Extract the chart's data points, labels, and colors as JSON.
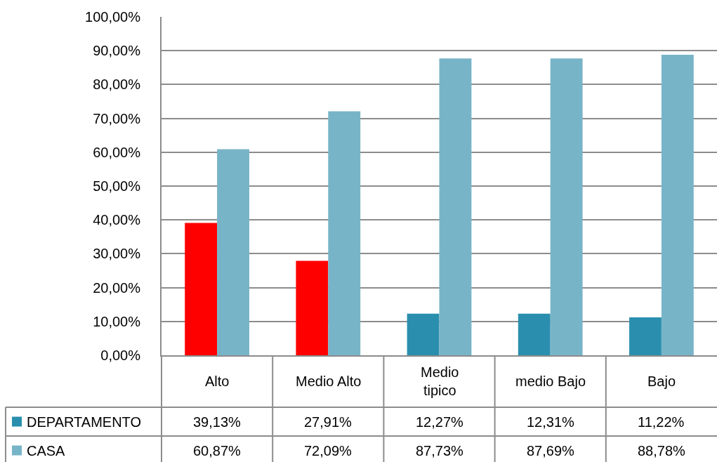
{
  "chart_data": {
    "type": "bar",
    "categories": [
      "Alto",
      "Medio Alto",
      "Medio tipico",
      "medio Bajo",
      "Bajo"
    ],
    "series": [
      {
        "name": "DEPARTAMENTO",
        "color": "#2a8fae",
        "colors": [
          "#ff0000",
          "#ff0000",
          "#2a8fae",
          "#2a8fae",
          "#2a8fae"
        ],
        "values": [
          39.13,
          27.91,
          12.27,
          12.31,
          11.22
        ],
        "value_labels": [
          "39,13%",
          "27,91%",
          "12,27%",
          "12,31%",
          "11,22%"
        ]
      },
      {
        "name": "CASA",
        "color": "#78b4c8",
        "values": [
          60.87,
          72.09,
          87.73,
          87.69,
          88.78
        ],
        "value_labels": [
          "60,87%",
          "72,09%",
          "87,73%",
          "87,69%",
          "88,78%"
        ]
      }
    ],
    "ylim": [
      0,
      100
    ],
    "yticks": [
      {
        "value": 0,
        "label": "0,00%"
      },
      {
        "value": 10,
        "label": "10,00%"
      },
      {
        "value": 20,
        "label": "20,00%"
      },
      {
        "value": 30,
        "label": "30,00%"
      },
      {
        "value": 40,
        "label": "40,00%"
      },
      {
        "value": 50,
        "label": "50,00%"
      },
      {
        "value": 60,
        "label": "60,00%"
      },
      {
        "value": 70,
        "label": "70,00%"
      },
      {
        "value": 80,
        "label": "80,00%"
      },
      {
        "value": 90,
        "label": "90,00%"
      },
      {
        "value": 100,
        "label": "100,00%"
      }
    ],
    "grid": "y",
    "legend": "bottom"
  }
}
